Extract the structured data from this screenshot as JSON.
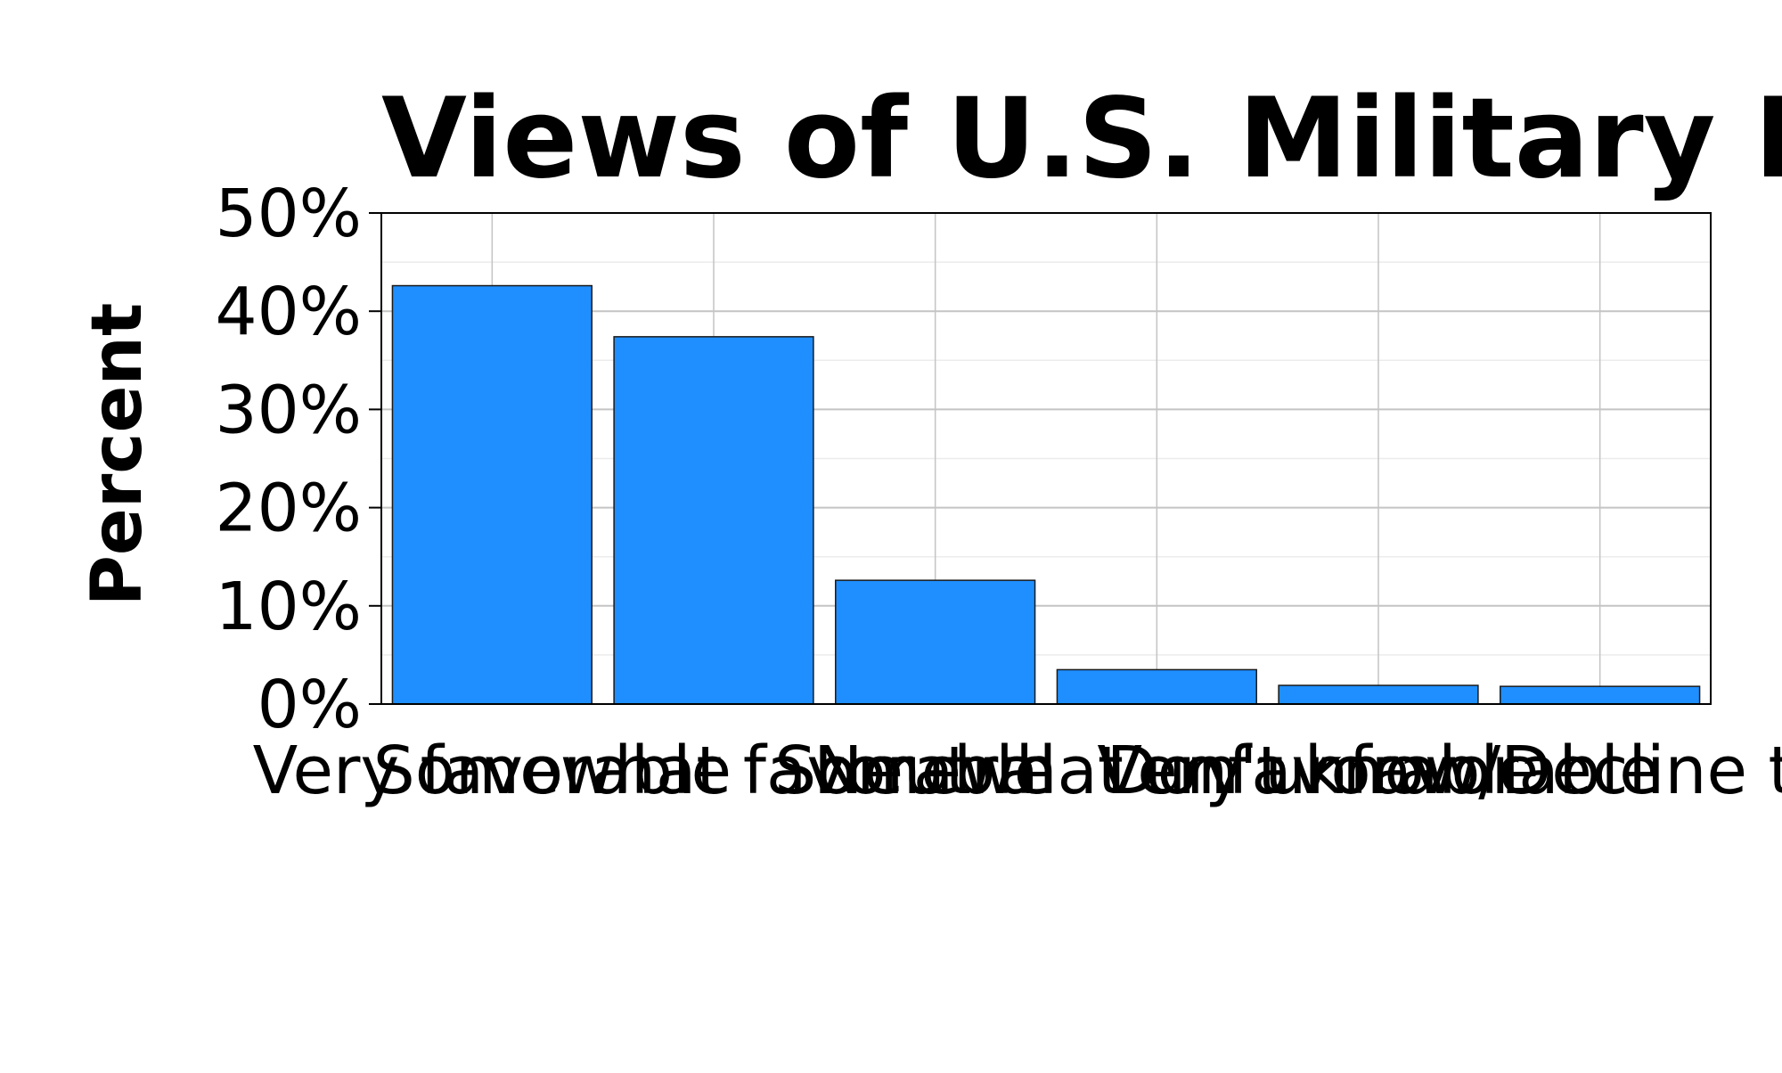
{
  "chart_data": {
    "type": "bar",
    "title": "Views of U.S. Military Personnel",
    "xlabel": "",
    "ylabel": "Percent",
    "categories": [
      "Very favorable",
      "Somewhat favorable",
      "Neutral",
      "Somewhat unfavorable",
      "Very unfavorable",
      "Don't know/Decline to answer"
    ],
    "values": [
      42.6,
      37.4,
      12.6,
      3.5,
      1.9,
      1.8
    ],
    "ylim": [
      0,
      50
    ],
    "yticks": [
      "0%",
      "10%",
      "20%",
      "30%",
      "40%",
      "50%"
    ],
    "grid": true,
    "colors": {
      "bar": "#1f8fff",
      "bar_edge": "#1a1a1a",
      "grid_major": "#c4c4c4",
      "grid_minor": "#ececec",
      "axis": "#000000"
    }
  }
}
